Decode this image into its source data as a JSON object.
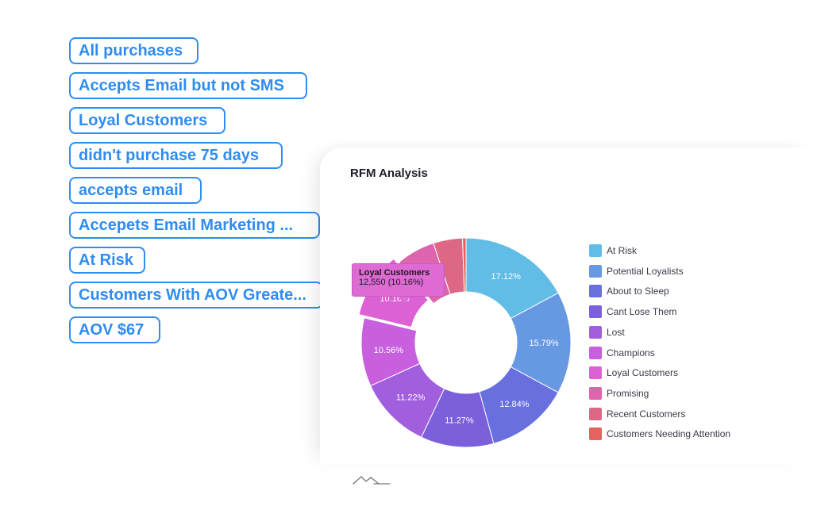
{
  "segments": [
    "All purchases",
    "Accepts Email but not SMS",
    "Loyal Customers",
    "didn't purchase 75 days",
    "accepts email",
    "Accepets Email Marketing ...",
    "At Risk",
    "Customers With AOV Greate...",
    "AOV $67"
  ],
  "card": {
    "title": "RFM Analysis"
  },
  "tooltip": {
    "title": "Loyal Customers",
    "value": "12,550 (10.16%)"
  },
  "chart_data": {
    "type": "pie",
    "title": "RFM Analysis",
    "donut": true,
    "legend_position": "right",
    "categories": [
      "At Risk",
      "Potential Loyalists",
      "About to Sleep",
      "Cant Lose Them",
      "Lost",
      "Champions",
      "Loyal Customers",
      "Promising",
      "Recent Customers",
      "Customers Needing Attention"
    ],
    "values": [
      17.12,
      15.79,
      12.84,
      11.27,
      11.22,
      10.56,
      10.16,
      6.0,
      4.5,
      0.54
    ],
    "labels": [
      "17.12%",
      "15.79%",
      "12.84%",
      "11.27%",
      "11.22%",
      "10.56%",
      "10.16%",
      "",
      "",
      ""
    ],
    "colors": [
      "#62bde6",
      "#6799e3",
      "#6770de",
      "#7b5fdb",
      "#a15fdd",
      "#c75fdf",
      "#dc61d5",
      "#de65ad",
      "#df6786",
      "#e4635f"
    ],
    "highlighted": "Loyal Customers"
  }
}
